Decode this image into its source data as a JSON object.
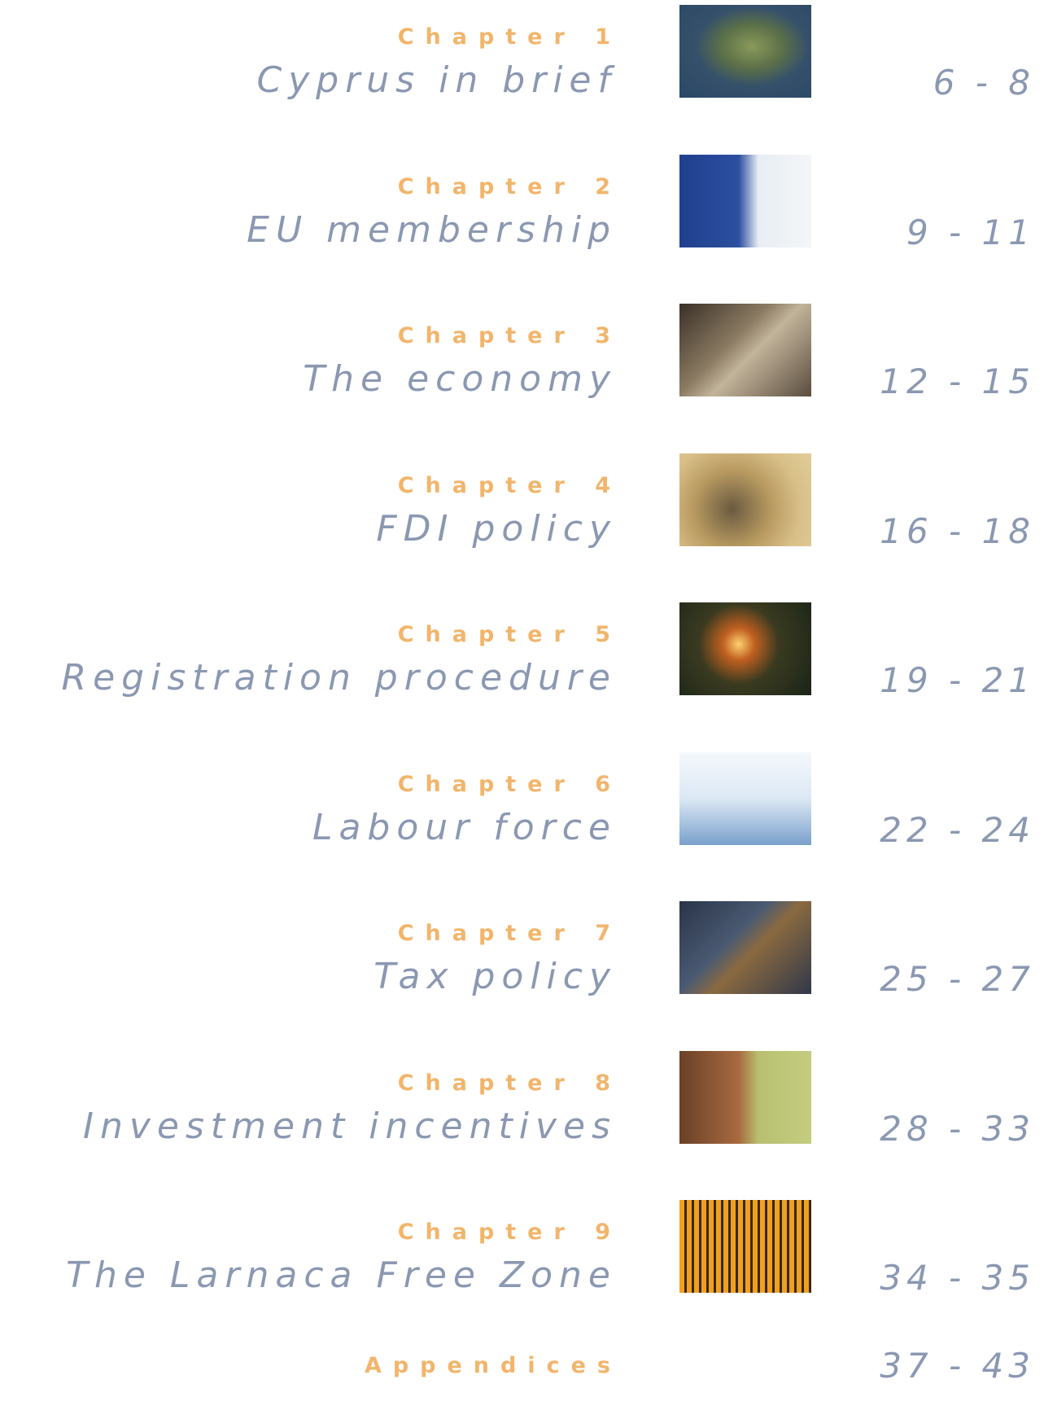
{
  "entries": [
    {
      "chapter": "Chapter 1",
      "title": "Cyprus in brief",
      "pages": "6 - 8"
    },
    {
      "chapter": "Chapter 2",
      "title": "EU membership",
      "pages": "9 - 11"
    },
    {
      "chapter": "Chapter 3",
      "title": "The economy",
      "pages": "12 - 15"
    },
    {
      "chapter": "Chapter 4",
      "title": "FDI policy",
      "pages": "16 - 18"
    },
    {
      "chapter": "Chapter 5",
      "title": "Registration procedure",
      "pages": "19 - 21"
    },
    {
      "chapter": "Chapter 6",
      "title": "Labour force",
      "pages": "22 - 24"
    },
    {
      "chapter": "Chapter 7",
      "title": "Tax policy",
      "pages": "25 - 27"
    },
    {
      "chapter": "Chapter 8",
      "title": "Investment incentives",
      "pages": "28 - 33"
    },
    {
      "chapter": "Chapter 9",
      "title": "The Larnaca Free Zone",
      "pages": "34 - 35"
    }
  ],
  "appendices": {
    "label": "Appendices",
    "pages": "37 - 43"
  }
}
